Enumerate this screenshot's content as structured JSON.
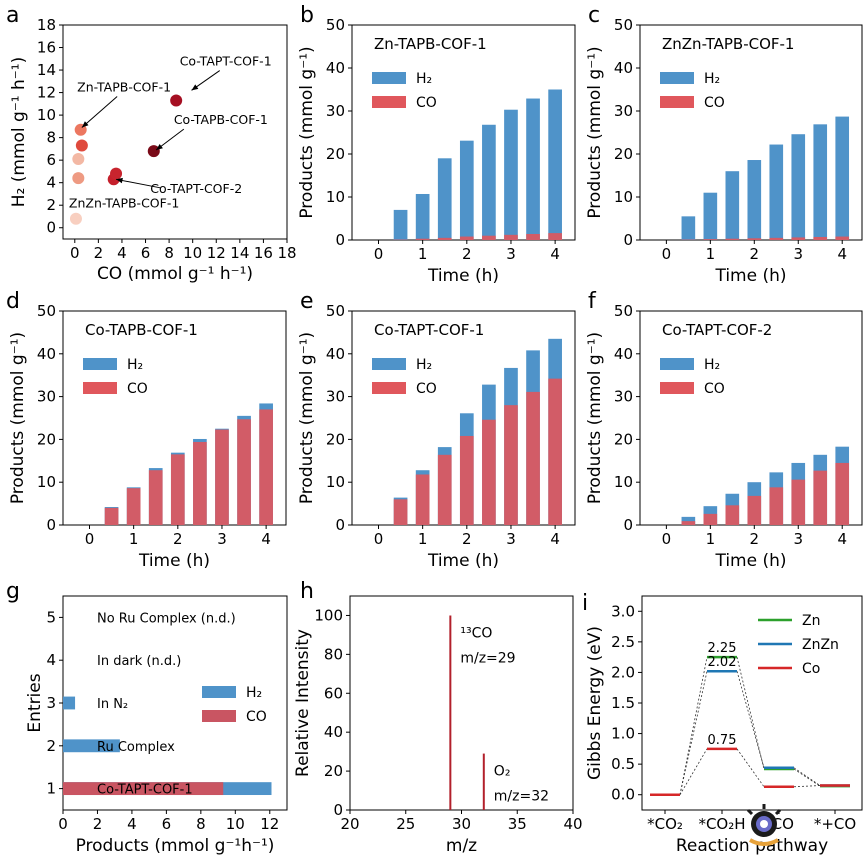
{
  "chart_data": [
    {
      "panel": "a",
      "type": "scatter",
      "xlabel": "CO (mmol g⁻¹ h⁻¹)",
      "ylabel": "H₂ (mmol g⁻¹ h⁻¹)",
      "xlim": [
        -1,
        18
      ],
      "ylim": [
        -1,
        18
      ],
      "xticks": [
        0,
        2,
        4,
        6,
        8,
        10,
        12,
        14,
        16,
        18
      ],
      "yticks": [
        0,
        2,
        4,
        6,
        8,
        10,
        12,
        14,
        16,
        18
      ],
      "points": [
        {
          "x": 0.1,
          "y": 0.8,
          "color": "#f8cfc0"
        },
        {
          "x": 0.3,
          "y": 6.1,
          "color": "#f3b8a4"
        },
        {
          "x": 0.3,
          "y": 4.4,
          "color": "#ee9a82"
        },
        {
          "x": 0.5,
          "y": 8.7,
          "color": "#ec7760"
        },
        {
          "x": 0.6,
          "y": 7.3,
          "color": "#df4a3d"
        },
        {
          "x": 3.3,
          "y": 4.3,
          "color": "#c5202c"
        },
        {
          "x": 3.5,
          "y": 4.8,
          "color": "#c8242e"
        },
        {
          "x": 6.7,
          "y": 6.8,
          "color": "#7a0a18"
        },
        {
          "x": 8.6,
          "y": 11.3,
          "color": "#a50f22"
        }
      ],
      "annotations": [
        {
          "text": "Co-TAPT-COF-1",
          "tx": 8.9,
          "ty": 14.4,
          "ax": 9.9,
          "ay": 12.2
        },
        {
          "text": "Zn-TAPB-COF-1",
          "tx": 0.2,
          "ty": 12.1,
          "ax": 0.6,
          "ay": 8.9
        },
        {
          "text": "Co-TAPB-COF-1",
          "tx": 8.4,
          "ty": 9.2,
          "ax": 6.9,
          "ay": 6.9
        },
        {
          "text": "Co-TAPT-COF-2",
          "tx": 6.4,
          "ty": 3.1,
          "ax": 3.5,
          "ay": 4.3
        },
        {
          "text": "ZnZn-TAPB-COF-1",
          "tx": -0.5,
          "ty": 1.8,
          "ax": null,
          "ay": null
        }
      ]
    },
    {
      "panel": "b",
      "type": "bar",
      "title": "Zn-TAPB-COF-1",
      "xlabel": "Time (h)",
      "ylabel": "Products (mmol g⁻¹)",
      "x": [
        0,
        0.5,
        1,
        1.5,
        2,
        2.5,
        3,
        3.5,
        4
      ],
      "xticks": [
        0,
        1,
        2,
        3,
        4
      ],
      "ylim": [
        0,
        50
      ],
      "yticks": [
        0,
        10,
        20,
        30,
        40,
        50
      ],
      "series": [
        {
          "name": "H₂",
          "color": "#4f93c9",
          "values": [
            0,
            7.0,
            10.7,
            19.0,
            23.1,
            26.8,
            30.3,
            32.9,
            35.0
          ]
        },
        {
          "name": "CO",
          "color": "#e0575c",
          "values": [
            0,
            0.1,
            0.3,
            0.5,
            0.8,
            1.0,
            1.2,
            1.4,
            1.6
          ]
        }
      ]
    },
    {
      "panel": "c",
      "type": "bar",
      "title": "ZnZn-TAPB-COF-1",
      "xlabel": "Time (h)",
      "ylabel": "Products (mmol g⁻¹)",
      "x": [
        0,
        0.5,
        1,
        1.5,
        2,
        2.5,
        3,
        3.5,
        4
      ],
      "xticks": [
        0,
        1,
        2,
        3,
        4
      ],
      "ylim": [
        0,
        50
      ],
      "yticks": [
        0,
        10,
        20,
        30,
        40,
        50
      ],
      "series": [
        {
          "name": "H₂",
          "color": "#4f93c9",
          "values": [
            0,
            5.5,
            11.0,
            16.0,
            18.6,
            22.2,
            24.6,
            26.9,
            28.7
          ]
        },
        {
          "name": "CO",
          "color": "#e0575c",
          "values": [
            0,
            0.1,
            0.2,
            0.3,
            0.4,
            0.5,
            0.6,
            0.7,
            0.8
          ]
        }
      ]
    },
    {
      "panel": "d",
      "type": "bar",
      "title": "Co-TAPB-COF-1",
      "xlabel": "Time (h)",
      "ylabel": "Products (mmol g⁻¹)",
      "x": [
        0,
        0.5,
        1,
        1.5,
        2,
        2.5,
        3,
        3.5,
        4
      ],
      "xticks": [
        0,
        1,
        2,
        3,
        4
      ],
      "ylim": [
        0,
        50
      ],
      "yticks": [
        0,
        10,
        20,
        30,
        40,
        50
      ],
      "series": [
        {
          "name": "H₂",
          "color": "#4f93c9",
          "values": [
            0,
            4.2,
            8.8,
            13.3,
            16.9,
            20.1,
            22.5,
            25.5,
            28.4
          ]
        },
        {
          "name": "CO",
          "color": "#e0575c",
          "values": [
            0,
            4.0,
            8.6,
            12.8,
            16.5,
            19.4,
            22.3,
            24.7,
            27.0
          ]
        }
      ]
    },
    {
      "panel": "e",
      "type": "bar",
      "title": "Co-TAPT-COF-1",
      "xlabel": "Time (h)",
      "ylabel": "Products (mmol g⁻¹)",
      "x": [
        0,
        0.5,
        1,
        1.5,
        2,
        2.5,
        3,
        3.5,
        4
      ],
      "xticks": [
        0,
        1,
        2,
        3,
        4
      ],
      "ylim": [
        0,
        50
      ],
      "yticks": [
        0,
        10,
        20,
        30,
        40,
        50
      ],
      "series": [
        {
          "name": "H₂",
          "color": "#4f93c9",
          "values": [
            0,
            6.4,
            12.8,
            18.2,
            26.1,
            32.8,
            36.7,
            40.8,
            43.5
          ]
        },
        {
          "name": "CO",
          "color": "#e0575c",
          "values": [
            0,
            6.0,
            11.8,
            16.4,
            20.8,
            24.6,
            28.0,
            31.1,
            34.2
          ]
        }
      ]
    },
    {
      "panel": "f",
      "type": "bar",
      "title": "Co-TAPT-COF-2",
      "xlabel": "Time (h)",
      "ylabel": "Products (mmol g⁻¹)",
      "x": [
        0,
        0.5,
        1,
        1.5,
        2,
        2.5,
        3,
        3.5,
        4
      ],
      "xticks": [
        0,
        1,
        2,
        3,
        4
      ],
      "ylim": [
        0,
        50
      ],
      "yticks": [
        0,
        10,
        20,
        30,
        40,
        50
      ],
      "series": [
        {
          "name": "H₂",
          "color": "#4f93c9",
          "values": [
            0,
            1.9,
            4.4,
            7.3,
            10.0,
            12.3,
            14.5,
            16.4,
            18.3
          ]
        },
        {
          "name": "CO",
          "color": "#e0575c",
          "values": [
            0,
            0.9,
            2.6,
            4.6,
            6.8,
            8.8,
            10.6,
            12.7,
            14.5
          ]
        }
      ]
    },
    {
      "panel": "g",
      "type": "bar",
      "orientation": "horizontal",
      "xlabel": "Products (mmol g⁻¹h⁻¹)",
      "ylabel": "Entries",
      "xlim": [
        0,
        13
      ],
      "xticks": [
        0,
        2,
        4,
        6,
        8,
        10,
        12
      ],
      "yticks": [
        1,
        2,
        3,
        4,
        5
      ],
      "categories": [
        1,
        2,
        3,
        4,
        5
      ],
      "category_labels": [
        "Co-TAPT-COF-1",
        "Ru Complex",
        "In N₂",
        "In dark (n.d.)",
        "No Ru Complex (n.d.)"
      ],
      "series": [
        {
          "name": "H₂",
          "color": "#4f93c9",
          "values": [
            12.1,
            3.3,
            0.7,
            0,
            0
          ]
        },
        {
          "name": "CO",
          "color": "#c95562",
          "values": [
            9.3,
            0,
            0,
            0,
            0
          ]
        }
      ]
    },
    {
      "panel": "h",
      "type": "bar",
      "subtype": "mass-spectrum",
      "xlabel": "m/z",
      "ylabel": "Relative Intensity",
      "xlim": [
        20,
        40
      ],
      "xticks": [
        20,
        25,
        30,
        35,
        40
      ],
      "ylim": [
        0,
        110
      ],
      "yticks": [
        0,
        20,
        40,
        60,
        80,
        100
      ],
      "color": "#b2202b",
      "peaks": [
        {
          "mz": 29,
          "intensity": 100,
          "label_top": "¹³CO",
          "label_bottom": "m/z=29"
        },
        {
          "mz": 32,
          "intensity": 29,
          "label_top": "O₂",
          "label_bottom": "m/z=32"
        }
      ]
    },
    {
      "panel": "i",
      "type": "line",
      "subtype": "energy-diagram",
      "xlabel": "Reaction pathway",
      "ylabel": "Gibbs Energy (eV)",
      "ylim": [
        -0.25,
        3.25
      ],
      "yticks": [
        "0.0",
        "0.5",
        "1.0",
        "1.5",
        "2.0",
        "2.5",
        "3.0"
      ],
      "categories": [
        "*CO₂",
        "*CO₂H",
        "*CO",
        "*+CO"
      ],
      "series": [
        {
          "name": "Zn",
          "color": "#2ca02c",
          "values": [
            0,
            2.25,
            0.42,
            0.14
          ],
          "label": "2.25"
        },
        {
          "name": "ZnZn",
          "color": "#1f77b4",
          "values": [
            0,
            2.02,
            0.44,
            0.15
          ],
          "label": "2.02"
        },
        {
          "name": "Co",
          "color": "#d62728",
          "values": [
            0,
            0.75,
            0.13,
            0.15
          ],
          "label": "0.75"
        }
      ]
    }
  ],
  "panel_letters": [
    "a",
    "b",
    "c",
    "d",
    "e",
    "f",
    "g",
    "h",
    "i"
  ]
}
